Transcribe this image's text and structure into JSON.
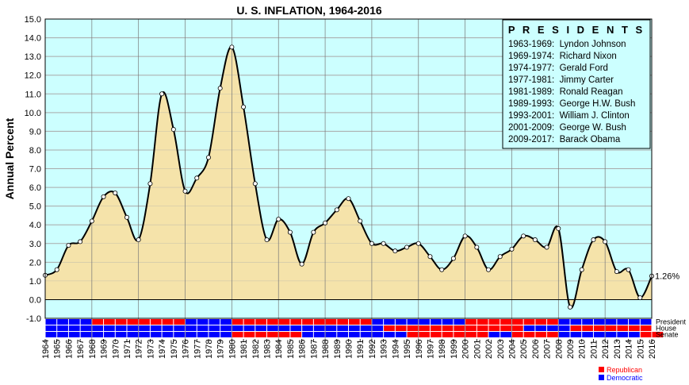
{
  "chart_data": {
    "type": "area",
    "title": "U. S. INFLATION, 1964-2016",
    "ylabel": "Annual Percent",
    "xlabel": "",
    "ylim": [
      -1.0,
      15.0
    ],
    "y_ticks": [
      "-1.0",
      "0.0",
      "1.0",
      "2.0",
      "3.0",
      "4.0",
      "5.0",
      "6.0",
      "7.0",
      "8.0",
      "9.0",
      "10.0",
      "11.0",
      "12.0",
      "13.0",
      "14.0",
      "15.0"
    ],
    "grid": true,
    "x": [
      1964,
      1965,
      1966,
      1967,
      1968,
      1969,
      1970,
      1971,
      1972,
      1973,
      1974,
      1975,
      1976,
      1977,
      1978,
      1979,
      1980,
      1981,
      1982,
      1983,
      1984,
      1985,
      1986,
      1987,
      1988,
      1989,
      1990,
      1991,
      1992,
      1993,
      1994,
      1995,
      1996,
      1997,
      1998,
      1999,
      2000,
      2001,
      2002,
      2003,
      2004,
      2005,
      2006,
      2007,
      2008,
      2009,
      2010,
      2011,
      2012,
      2013,
      2014,
      2015,
      2016
    ],
    "values": [
      1.3,
      1.6,
      2.9,
      3.1,
      4.2,
      5.5,
      5.7,
      4.4,
      3.2,
      6.2,
      11.0,
      9.1,
      5.8,
      6.5,
      7.6,
      11.3,
      13.5,
      10.3,
      6.2,
      3.2,
      4.3,
      3.6,
      1.9,
      3.6,
      4.1,
      4.8,
      5.4,
      4.2,
      3.0,
      3.0,
      2.6,
      2.8,
      3.0,
      2.3,
      1.6,
      2.2,
      3.4,
      2.8,
      1.6,
      2.3,
      2.7,
      3.4,
      3.2,
      2.8,
      3.8,
      -0.4,
      1.6,
      3.2,
      3.1,
      1.5,
      1.6,
      0.1,
      1.26
    ],
    "last_value_label": "1.26%",
    "presidents_box": {
      "title": "P R E S I D E N T S",
      "entries": [
        "1963-1969:  Lyndon Johnson",
        "1969-1974:  Richard Nixon",
        "1974-1977:  Gerald Ford",
        "1977-1981:  Jimmy Carter",
        "1981-1989:  Ronald Reagan",
        "1989-1993:  George H.W. Bush",
        "1993-2001:  William J. Clinton",
        "2001-2009:  George W. Bush",
        "2009-2017:  Barack Obama"
      ]
    },
    "party_rows": [
      {
        "name": "President",
        "parties": "DDDDRRRRRRRRDDDDRRRRRRRRRRRRDDDDDDDDRRRRRRRRDDDDDDDD"
      },
      {
        "name": "House",
        "parties": "DDDDDDDDDDDDDDDDDDDDDDDDDDDDDRRRRRRRRRRRRDDDDRRRRRRR"
      },
      {
        "name": "Senate",
        "parties": "DDDDDDDDDDDDDDDDRRRRRRDDDDDDDDDRRRRRRRDDRRRRDDDDDDDRR"
      }
    ],
    "legend": [
      {
        "label": "Republican",
        "color": "#ff0000"
      },
      {
        "label": "Democratic",
        "color": "#0000ff"
      }
    ],
    "colors": {
      "plot_bg": "#ccffff",
      "area_fill": "#f5e3aa",
      "line": "#000000",
      "republican": "#ff0000",
      "democratic": "#0000ff",
      "grid": "#aaaaaa",
      "year_line": "#777777"
    }
  }
}
